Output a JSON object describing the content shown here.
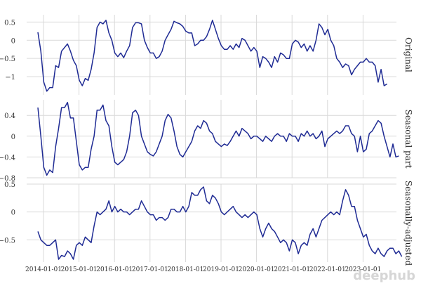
{
  "figure": {
    "line_color": "#1f2b94",
    "grid_color": "#d9d9d9",
    "watermark": "deephub"
  },
  "chart_data": [
    {
      "type": "line",
      "title": "Original",
      "ylim": [
        -1.5,
        0.7
      ],
      "yticks": [
        0.5,
        0,
        -0.5,
        -1
      ],
      "yticklabels": [
        "0.5",
        "0",
        "−0.5",
        "−1"
      ],
      "xticks": [
        "2014-01-01",
        "2015-01-01",
        "2016-01-01",
        "2017-01-01",
        "2018-01-01",
        "2019-01-01",
        "2020-01-01",
        "2021-01-01",
        "2022-01-01",
        "2023-01-01"
      ],
      "series": [
        {
          "values": [
            0.22,
            -0.3,
            -1.15,
            -1.4,
            -1.3,
            -1.3,
            -0.7,
            -0.75,
            -0.3,
            -0.2,
            -0.1,
            -0.3,
            -0.55,
            -0.7,
            -1.1,
            -1.25,
            -1.05,
            -1.1,
            -0.8,
            -0.35,
            0.35,
            0.5,
            0.45,
            0.55,
            0.2,
            0.0,
            -0.35,
            -0.45,
            -0.35,
            -0.48,
            -0.3,
            -0.15,
            0.35,
            0.48,
            0.48,
            0.45,
            0.0,
            -0.2,
            -0.35,
            -0.35,
            -0.5,
            -0.45,
            -0.3,
            0.0,
            0.15,
            0.3,
            0.52,
            0.48,
            0.45,
            0.38,
            0.25,
            0.2,
            0.2,
            -0.15,
            -0.1,
            0.0,
            0.0,
            0.1,
            0.3,
            0.55,
            0.3,
            0.05,
            -0.15,
            -0.25,
            -0.25,
            -0.15,
            -0.25,
            -0.1,
            -0.2,
            0.05,
            0.0,
            -0.15,
            -0.3,
            -0.2,
            -0.3,
            -0.75,
            -0.45,
            -0.5,
            -0.6,
            -0.75,
            -0.45,
            -0.6,
            -0.35,
            -0.4,
            -0.5,
            -0.5,
            -0.1,
            0.0,
            -0.05,
            -0.2,
            -0.1,
            -0.3,
            -0.15,
            -0.3,
            0.0,
            0.45,
            0.35,
            0.15,
            0.3,
            0.0,
            -0.15,
            -0.5,
            -0.6,
            -0.75,
            -0.65,
            -0.7,
            -0.95,
            -0.8,
            -0.7,
            -0.6,
            -0.6,
            -0.5,
            -0.6,
            -0.6,
            -0.7,
            -1.15,
            -0.8,
            -1.25,
            -1.2
          ]
        }
      ]
    },
    {
      "type": "line",
      "title": "Seasonal part",
      "ylim": [
        -0.8,
        0.7
      ],
      "yticks": [
        0.4,
        0,
        -0.4,
        -0.8
      ],
      "yticklabels": [
        "0.4",
        "0",
        "−0.4",
        "−0.8"
      ],
      "xticks": [
        "2014-01-01",
        "2015-01-01",
        "2016-01-01",
        "2017-01-01",
        "2018-01-01",
        "2019-01-01",
        "2020-01-01",
        "2021-01-01",
        "2022-01-01",
        "2023-01-01"
      ],
      "series": [
        {
          "values": [
            0.55,
            0.0,
            -0.6,
            -0.75,
            -0.65,
            -0.7,
            -0.2,
            0.15,
            0.55,
            0.55,
            0.65,
            0.35,
            0.35,
            -0.1,
            -0.55,
            -0.65,
            -0.6,
            -0.6,
            -0.25,
            0.0,
            0.5,
            0.5,
            0.6,
            0.3,
            0.2,
            -0.2,
            -0.5,
            -0.55,
            -0.5,
            -0.45,
            -0.3,
            0.0,
            0.45,
            0.5,
            0.4,
            0.0,
            -0.15,
            -0.3,
            -0.35,
            -0.38,
            -0.3,
            -0.15,
            0.0,
            0.3,
            0.42,
            0.35,
            0.1,
            -0.2,
            -0.35,
            -0.4,
            -0.3,
            -0.2,
            -0.1,
            0.1,
            0.2,
            0.15,
            0.3,
            0.25,
            0.1,
            0.05,
            -0.1,
            -0.15,
            -0.2,
            -0.15,
            -0.18,
            -0.1,
            0.0,
            0.1,
            0.0,
            0.15,
            0.1,
            0.05,
            -0.05,
            0.0,
            0.0,
            -0.05,
            -0.1,
            0.0,
            -0.05,
            -0.1,
            0.0,
            0.05,
            0.0,
            0.0,
            -0.1,
            0.05,
            0.0,
            0.0,
            -0.1,
            0.05,
            0.0,
            0.1,
            0.0,
            0.05,
            -0.05,
            0.0,
            0.1,
            -0.2,
            -0.05,
            0.0,
            0.05,
            0.1,
            0.05,
            0.1,
            0.2,
            0.2,
            0.05,
            0.0,
            -0.3,
            0.0,
            -0.3,
            -0.25,
            0.05,
            0.1,
            0.2,
            0.3,
            0.25,
            0.0,
            -0.2,
            -0.4,
            -0.15,
            -0.4,
            -0.38
          ]
        }
      ]
    },
    {
      "type": "line",
      "title": "Seasonally-adjusted",
      "ylim": [
        -0.9,
        0.5
      ],
      "yticks": [
        0.5,
        0,
        -0.5
      ],
      "yticklabels": [
        "0.5",
        "0",
        "−0.5"
      ],
      "xticks": [
        "2014-01-01",
        "2015-01-01",
        "2016-01-01",
        "2017-01-01",
        "2018-01-01",
        "2019-01-01",
        "2020-01-01",
        "2021-01-01",
        "2022-01-01",
        "2023-01-01"
      ],
      "series": [
        {
          "values": [
            -0.35,
            -0.5,
            -0.55,
            -0.6,
            -0.6,
            -0.55,
            -0.5,
            -0.85,
            -0.78,
            -0.8,
            -0.7,
            -0.75,
            -0.85,
            -0.6,
            -0.55,
            -0.6,
            -0.45,
            -0.5,
            -0.55,
            -0.25,
            0.0,
            -0.05,
            0.0,
            0.05,
            0.2,
            0.0,
            0.1,
            0.0,
            0.05,
            0.0,
            0.0,
            -0.05,
            0.0,
            0.05,
            0.05,
            0.2,
            0.1,
            0.0,
            -0.05,
            -0.05,
            -0.15,
            -0.1,
            -0.1,
            -0.15,
            -0.1,
            0.05,
            0.05,
            0.0,
            0.0,
            0.1,
            0.0,
            0.1,
            0.35,
            0.3,
            0.3,
            0.4,
            0.45,
            0.2,
            0.15,
            0.3,
            0.25,
            0.15,
            0.0,
            -0.05,
            0.0,
            0.05,
            0.1,
            0.0,
            -0.05,
            -0.1,
            -0.05,
            -0.1,
            -0.05,
            0.0,
            -0.05,
            -0.3,
            -0.45,
            -0.3,
            -0.2,
            -0.3,
            -0.35,
            -0.45,
            -0.55,
            -0.5,
            -0.55,
            -0.7,
            -0.5,
            -0.55,
            -0.75,
            -0.6,
            -0.55,
            -0.6,
            -0.4,
            -0.3,
            -0.45,
            -0.3,
            -0.15,
            -0.1,
            -0.05,
            0.0,
            -0.05,
            0.0,
            -0.05,
            0.2,
            0.4,
            0.3,
            0.1,
            0.1,
            -0.15,
            -0.3,
            -0.45,
            -0.4,
            -0.6,
            -0.7,
            -0.75,
            -0.65,
            -0.75,
            -0.8,
            -0.7,
            -0.65,
            -0.65,
            -0.75,
            -0.7,
            -0.8
          ]
        }
      ]
    }
  ]
}
